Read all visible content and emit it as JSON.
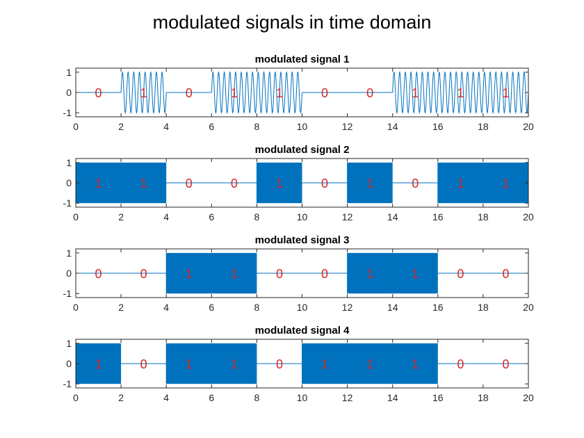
{
  "figure_title": "modulated signals in time domain",
  "colors": {
    "signal": "#0072BD",
    "bit_label": "#D62728",
    "axis": "#262626",
    "background": "#ffffff"
  },
  "chart_data": [
    {
      "type": "line",
      "title": "modulated signal 1",
      "modulation": "frequency-shift",
      "bit_duration": 2,
      "bits": [
        0,
        1,
        0,
        1,
        1,
        0,
        0,
        1,
        1,
        1
      ],
      "bit_labels": [
        "0",
        "1",
        "0",
        "1",
        "1",
        "0",
        "0",
        "1",
        "1",
        "1"
      ],
      "bit0_amplitude": 0,
      "bit1_amplitude": 1,
      "carrier_cycles_per_bit": 8,
      "xlim": [
        0,
        20
      ],
      "ylim": [
        -1.2,
        1.2
      ],
      "xticks": [
        "0",
        "2",
        "4",
        "6",
        "8",
        "10",
        "12",
        "14",
        "16",
        "18",
        "20"
      ],
      "yticks": [
        "1",
        "0",
        "-1"
      ],
      "grid": false
    },
    {
      "type": "line",
      "title": "modulated signal 2",
      "modulation": "amplitude-shift, high-frequency carrier",
      "bit_duration": 2,
      "bits": [
        1,
        1,
        0,
        0,
        1,
        0,
        1,
        0,
        1,
        1
      ],
      "bit_labels": [
        "1",
        "1",
        "0",
        "0",
        "1",
        "0",
        "1",
        "0",
        "1",
        "1"
      ],
      "bit0_amplitude": 0,
      "bit1_amplitude": 1,
      "carrier_cycles_per_bit": 120,
      "xlim": [
        0,
        20
      ],
      "ylim": [
        -1.2,
        1.2
      ],
      "xticks": [
        "0",
        "2",
        "4",
        "6",
        "8",
        "10",
        "12",
        "14",
        "16",
        "18",
        "20"
      ],
      "yticks": [
        "1",
        "0",
        "-1"
      ],
      "grid": false
    },
    {
      "type": "line",
      "title": "modulated signal 3",
      "modulation": "amplitude-shift, high-frequency carrier",
      "bit_duration": 2,
      "bits": [
        0,
        0,
        1,
        1,
        0,
        0,
        1,
        1,
        0,
        0
      ],
      "bit_labels": [
        "0",
        "0",
        "1",
        "1",
        "0",
        "0",
        "1",
        "1",
        "0",
        "0"
      ],
      "bit0_amplitude": 0,
      "bit1_amplitude": 1,
      "carrier_cycles_per_bit": 200,
      "xlim": [
        0,
        20
      ],
      "ylim": [
        -1.2,
        1.2
      ],
      "xticks": [
        "0",
        "2",
        "4",
        "6",
        "8",
        "10",
        "12",
        "14",
        "16",
        "18",
        "20"
      ],
      "yticks": [
        "1",
        "0",
        "-1"
      ],
      "grid": false
    },
    {
      "type": "line",
      "title": "modulated signal 4",
      "modulation": "amplitude-shift, high-frequency carrier",
      "bit_duration": 2,
      "bits": [
        1,
        0,
        1,
        1,
        0,
        1,
        1,
        1,
        0,
        0
      ],
      "bit_labels": [
        "1",
        "0",
        "1",
        "1",
        "0",
        "1",
        "1",
        "1",
        "0",
        "0"
      ],
      "bit0_amplitude": 0,
      "bit1_amplitude": 1,
      "carrier_cycles_per_bit": 200,
      "xlim": [
        0,
        20
      ],
      "ylim": [
        -1.2,
        1.2
      ],
      "xticks": [
        "0",
        "2",
        "4",
        "6",
        "8",
        "10",
        "12",
        "14",
        "16",
        "18",
        "20"
      ],
      "yticks": [
        "1",
        "0",
        "-1"
      ],
      "grid": false
    }
  ]
}
